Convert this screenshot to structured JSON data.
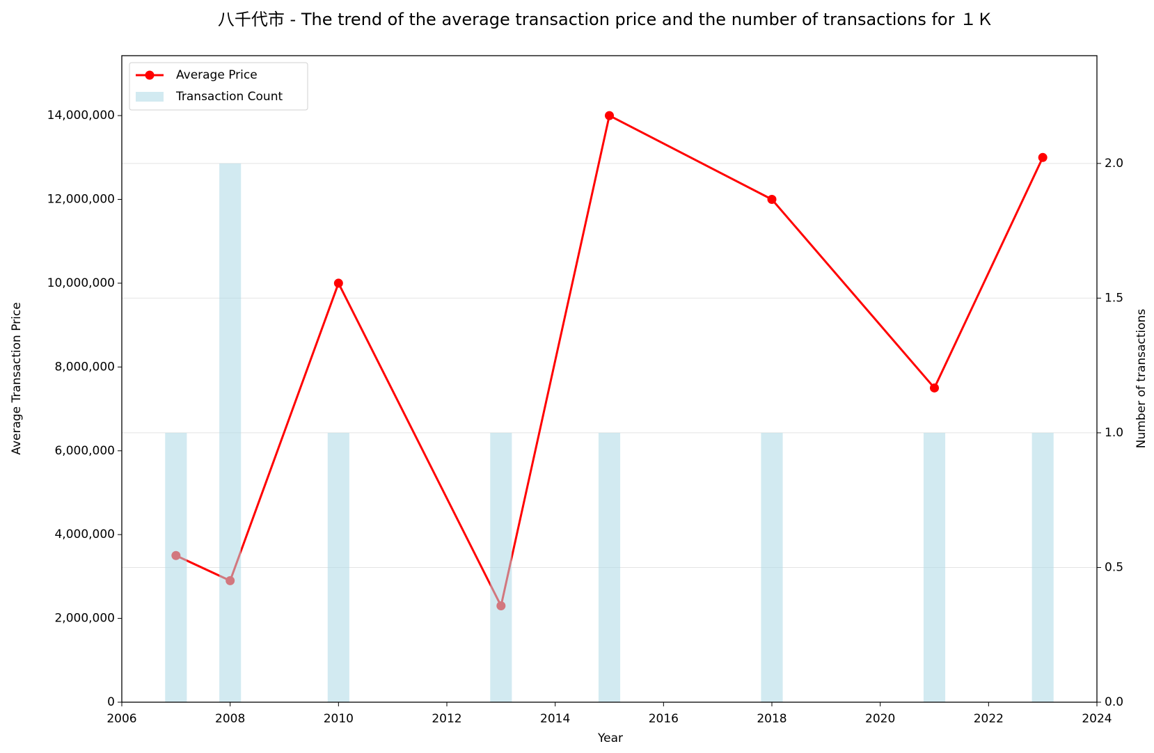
{
  "chart_data": {
    "type": "line",
    "title": "八千代市 - The trend of the average transaction price and the number of transactions for １Ｋ",
    "xlabel": "Year",
    "ylabel": "Average Transaction Price",
    "y2label": "Number of transactions",
    "x": [
      2007,
      2008,
      2010,
      2013,
      2015,
      2018,
      2021,
      2023
    ],
    "series": [
      {
        "name": "Average Price",
        "color": "#ff0000",
        "type": "line",
        "values": [
          3500000,
          2900000,
          10000000,
          2300000,
          14000000,
          12000000,
          7500000,
          13000000
        ]
      },
      {
        "name": "Transaction Count",
        "color": "#add8e6",
        "type": "bar",
        "axis": "y2",
        "values": [
          1,
          2,
          1,
          1,
          1,
          1,
          1,
          1
        ]
      }
    ],
    "xlim": [
      2006,
      2024
    ],
    "xticks": [
      2006,
      2008,
      2010,
      2012,
      2014,
      2016,
      2018,
      2020,
      2022,
      2024
    ],
    "ylim": [
      0,
      15430000
    ],
    "yticks": [
      0,
      {
        "value": 2000000,
        "label": "2,000,000"
      },
      {
        "value": 4000000,
        "label": "4,000,000"
      },
      {
        "value": 6000000,
        "label": "6,000,000"
      },
      {
        "value": 8000000,
        "label": "8,000,000"
      },
      {
        "value": 10000000,
        "label": "10,000,000"
      },
      {
        "value": 12000000,
        "label": "12,000,000"
      },
      {
        "value": 14000000,
        "label": "14,000,000"
      }
    ],
    "y2lim": [
      0,
      2.4
    ],
    "y2ticks": [
      {
        "value": 0,
        "label": "0.0"
      },
      {
        "value": 0.5,
        "label": "0.5"
      },
      {
        "value": 1,
        "label": "1.0"
      },
      {
        "value": 1.5,
        "label": "1.5"
      },
      {
        "value": 2,
        "label": "2.0"
      }
    ],
    "ylabel_color": "#8b0000",
    "y2label_color": "#00008b",
    "grid": true,
    "legend": "upper left"
  }
}
